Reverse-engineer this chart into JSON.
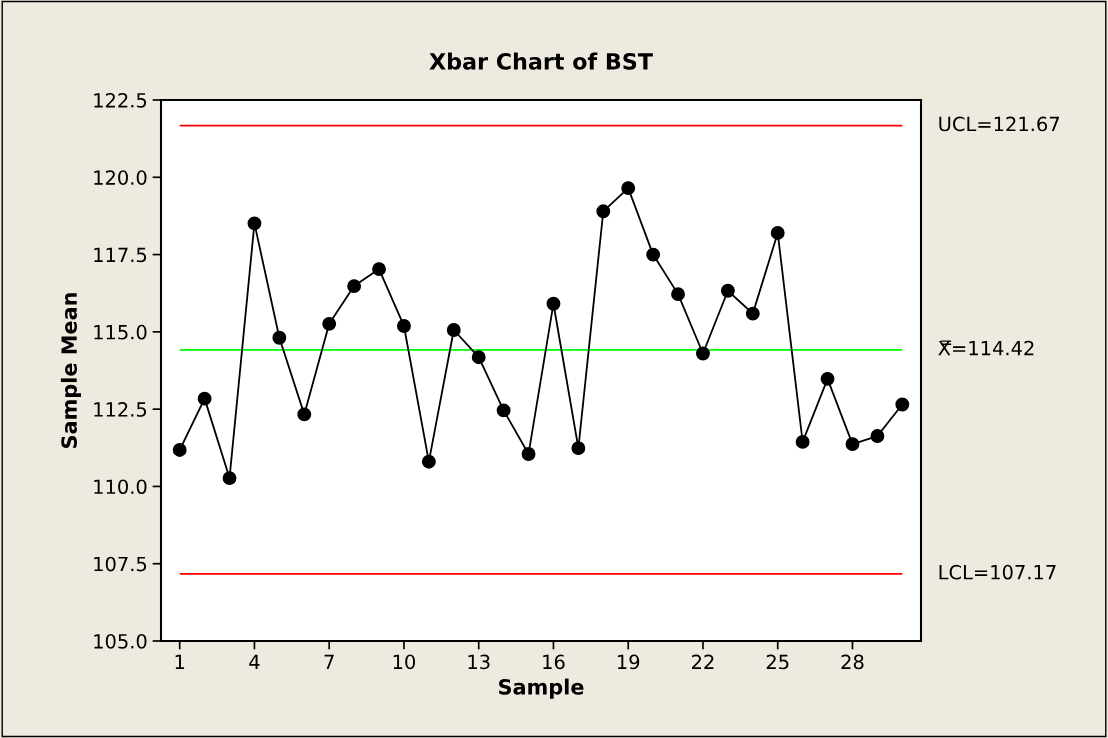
{
  "chart_data": {
    "type": "line",
    "title": "Xbar Chart of BST",
    "xlabel": "Sample",
    "ylabel": "Sample Mean",
    "x": [
      1,
      2,
      3,
      4,
      5,
      6,
      7,
      8,
      9,
      10,
      11,
      12,
      13,
      14,
      15,
      16,
      17,
      18,
      19,
      20,
      21,
      22,
      23,
      24,
      25,
      26,
      27,
      28,
      29,
      30
    ],
    "series": [
      {
        "color": "#000000",
        "values": [
          111.18,
          112.84,
          110.27,
          118.51,
          114.81,
          112.33,
          115.26,
          116.48,
          117.03,
          115.19,
          110.8,
          115.06,
          114.18,
          112.46,
          111.05,
          115.91,
          111.24,
          118.9,
          119.65,
          117.5,
          116.22,
          114.3,
          116.33,
          115.59,
          118.2,
          111.44,
          113.48,
          111.37,
          111.63,
          112.65
        ]
      }
    ],
    "marker": "circle",
    "line_style": "solid",
    "xlim": [
      0.25,
      30.75
    ],
    "xticks": [
      1,
      4,
      7,
      10,
      13,
      16,
      19,
      22,
      25,
      28
    ],
    "ylim": [
      105,
      122.5
    ],
    "yticks": [
      {
        "value": 105,
        "label": "105.0"
      },
      107.5,
      {
        "value": 110,
        "label": "110.0"
      },
      112.5,
      {
        "value": 115,
        "label": "115.0"
      },
      117.5,
      {
        "value": 120,
        "label": "120.0"
      },
      122.5
    ],
    "ref_lines": [
      {
        "axis": "y",
        "value": 121.67,
        "label": "UCL=121.67",
        "color": "#ff0000"
      },
      {
        "axis": "y",
        "value": 114.42,
        "label": "X̿=114.42",
        "color": "#00ff00"
      },
      {
        "axis": "y",
        "value": 107.17,
        "label": "LCL=107.17",
        "color": "#ff0000"
      }
    ],
    "grid": false,
    "legend": false
  }
}
